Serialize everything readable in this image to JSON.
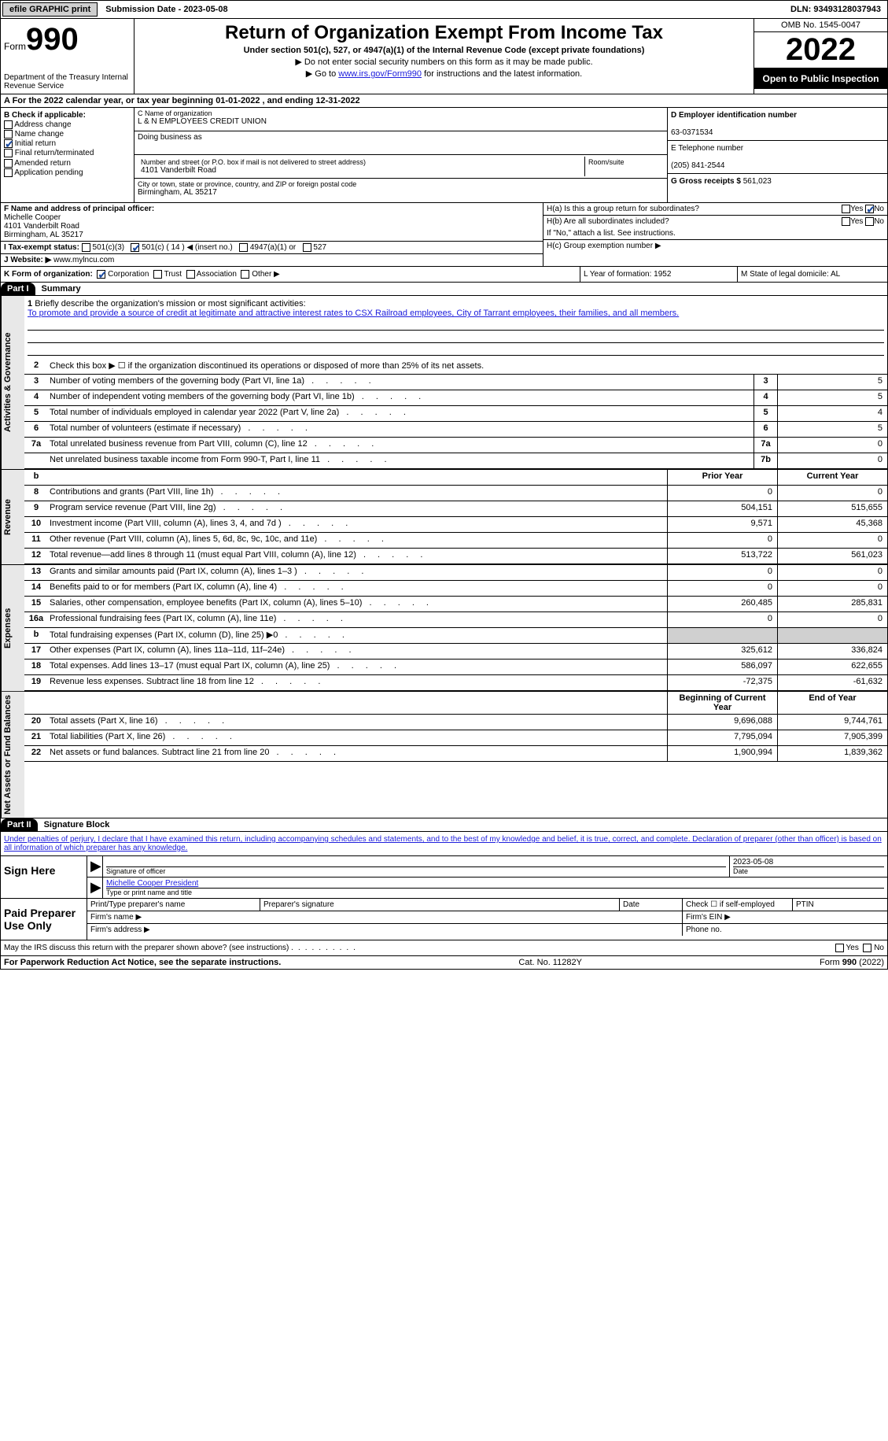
{
  "topbar": {
    "efile_btn": "efile GRAPHIC print",
    "sub_date": "Submission Date - 2023-05-08",
    "dln": "DLN: 93493128037943"
  },
  "header": {
    "form_word": "Form",
    "form_num": "990",
    "dept": "Department of the Treasury Internal Revenue Service",
    "title": "Return of Organization Exempt From Income Tax",
    "sub1": "Under section 501(c), 527, or 4947(a)(1) of the Internal Revenue Code (except private foundations)",
    "sub2": "▶ Do not enter social security numbers on this form as it may be made public.",
    "sub3_pre": "▶ Go to ",
    "sub3_link": "www.irs.gov/Form990",
    "sub3_post": " for instructions and the latest information.",
    "omb": "OMB No. 1545-0047",
    "year": "2022",
    "open": "Open to Public Inspection"
  },
  "rowA": "A For the 2022 calendar year, or tax year beginning 01-01-2022    , and ending 12-31-2022",
  "colB_label": "B Check if applicable:",
  "colB_opts": [
    "Address change",
    "Name change",
    "Initial return",
    "Final return/terminated",
    "Amended return",
    "Application pending"
  ],
  "colB_checked_idx": 2,
  "colC": {
    "name_label": "C Name of organization",
    "name": "L & N EMPLOYEES CREDIT UNION",
    "dba": "Doing business as",
    "addr_label": "Number and street (or P.O. box if mail is not delivered to street address)",
    "room_label": "Room/suite",
    "addr": "4101 Vanderbilt Road",
    "city_label": "City or town, state or province, country, and ZIP or foreign postal code",
    "city": "Birmingham, AL  35217"
  },
  "colD": {
    "ein_label": "D Employer identification number",
    "ein": "63-0371534",
    "tel_label": "E Telephone number",
    "tel": "(205) 841-2544",
    "gross_label": "G Gross receipts $",
    "gross": "561,023"
  },
  "rowF": {
    "label": "F Name and address of principal officer:",
    "name": "Michelle Cooper",
    "addr1": "4101 Vanderbilt Road",
    "addr2": "Birmingham, AL  35217"
  },
  "rowH": {
    "ha": "H(a)  Is this a group return for subordinates?",
    "hb": "H(b)  Are all subordinates included?",
    "hb_note": "If \"No,\" attach a list. See instructions.",
    "hc": "H(c)  Group exemption number ▶",
    "yes": "Yes",
    "no": "No"
  },
  "rowI": {
    "label": "I  Tax-exempt status:",
    "o1": "501(c)(3)",
    "o2": "501(c) ( 14 ) ◀ (insert no.)",
    "o3": "4947(a)(1) or",
    "o4": "527"
  },
  "rowJ": {
    "label": "J  Website: ▶",
    "val": "www.mylncu.com"
  },
  "rowK": {
    "label": "K Form of organization:",
    "o1": "Corporation",
    "o2": "Trust",
    "o3": "Association",
    "o4": "Other ▶",
    "L": "L Year of formation: 1952",
    "M": "M State of legal domicile: AL"
  },
  "part1": {
    "tag": "Part I",
    "title": "Summary"
  },
  "brief": {
    "num": "1",
    "label": "Briefly describe the organization's mission or most significant activities:",
    "text": "To promote and provide a source of credit at legitimate and attractive interest rates to CSX Railroad employees, City of Tarrant employees, their families, and all members."
  },
  "line2": "Check this box ▶ ☐  if the organization discontinued its operations or disposed of more than 25% of its net assets.",
  "gov_lines": [
    {
      "n": "3",
      "d": "Number of voting members of the governing body (Part VI, line 1a)",
      "b": "3",
      "v": "5"
    },
    {
      "n": "4",
      "d": "Number of independent voting members of the governing body (Part VI, line 1b)",
      "b": "4",
      "v": "5"
    },
    {
      "n": "5",
      "d": "Total number of individuals employed in calendar year 2022 (Part V, line 2a)",
      "b": "5",
      "v": "4"
    },
    {
      "n": "6",
      "d": "Total number of volunteers (estimate if necessary)",
      "b": "6",
      "v": "5"
    },
    {
      "n": "7a",
      "d": "Total unrelated business revenue from Part VIII, column (C), line 12",
      "b": "7a",
      "v": "0"
    },
    {
      "n": "",
      "d": "Net unrelated business taxable income from Form 990-T, Part I, line 11",
      "b": "7b",
      "v": "0"
    }
  ],
  "col_hdr": {
    "n": "b",
    "prior": "Prior Year",
    "curr": "Current Year"
  },
  "rev_lines": [
    {
      "n": "8",
      "d": "Contributions and grants (Part VIII, line 1h)",
      "p": "0",
      "c": "0"
    },
    {
      "n": "9",
      "d": "Program service revenue (Part VIII, line 2g)",
      "p": "504,151",
      "c": "515,655"
    },
    {
      "n": "10",
      "d": "Investment income (Part VIII, column (A), lines 3, 4, and 7d )",
      "p": "9,571",
      "c": "45,368"
    },
    {
      "n": "11",
      "d": "Other revenue (Part VIII, column (A), lines 5, 6d, 8c, 9c, 10c, and 11e)",
      "p": "0",
      "c": "0"
    },
    {
      "n": "12",
      "d": "Total revenue—add lines 8 through 11 (must equal Part VIII, column (A), line 12)",
      "p": "513,722",
      "c": "561,023"
    }
  ],
  "exp_lines": [
    {
      "n": "13",
      "d": "Grants and similar amounts paid (Part IX, column (A), lines 1–3 )",
      "p": "0",
      "c": "0"
    },
    {
      "n": "14",
      "d": "Benefits paid to or for members (Part IX, column (A), line 4)",
      "p": "0",
      "c": "0"
    },
    {
      "n": "15",
      "d": "Salaries, other compensation, employee benefits (Part IX, column (A), lines 5–10)",
      "p": "260,485",
      "c": "285,831"
    },
    {
      "n": "16a",
      "d": "Professional fundraising fees (Part IX, column (A), line 11e)",
      "p": "0",
      "c": "0"
    },
    {
      "n": "b",
      "d": "Total fundraising expenses (Part IX, column (D), line 25) ▶0",
      "p": "GRAY",
      "c": "GRAY"
    },
    {
      "n": "17",
      "d": "Other expenses (Part IX, column (A), lines 11a–11d, 11f–24e)",
      "p": "325,612",
      "c": "336,824"
    },
    {
      "n": "18",
      "d": "Total expenses. Add lines 13–17 (must equal Part IX, column (A), line 25)",
      "p": "586,097",
      "c": "622,655"
    },
    {
      "n": "19",
      "d": "Revenue less expenses. Subtract line 18 from line 12",
      "p": "-72,375",
      "c": "-61,632"
    }
  ],
  "net_hdr": {
    "p": "Beginning of Current Year",
    "c": "End of Year"
  },
  "net_lines": [
    {
      "n": "20",
      "d": "Total assets (Part X, line 16)",
      "p": "9,696,088",
      "c": "9,744,761"
    },
    {
      "n": "21",
      "d": "Total liabilities (Part X, line 26)",
      "p": "7,795,094",
      "c": "7,905,399"
    },
    {
      "n": "22",
      "d": "Net assets or fund balances. Subtract line 21 from line 20",
      "p": "1,900,994",
      "c": "1,839,362"
    }
  ],
  "section_labels": {
    "gov": "Activities & Governance",
    "rev": "Revenue",
    "exp": "Expenses",
    "net": "Net Assets or Fund Balances"
  },
  "part2": {
    "tag": "Part II",
    "title": "Signature Block"
  },
  "penalty": "Under penalties of perjury, I declare that I have examined this return, including accompanying schedules and statements, and to the best of my knowledge and belief, it is true, correct, and complete. Declaration of preparer (other than officer) is based on all information of which preparer has any knowledge.",
  "sign": {
    "here": "Sign Here",
    "sig_label": "Signature of officer",
    "date": "2023-05-08",
    "date_label": "Date",
    "name": "Michelle Cooper  President",
    "name_label": "Type or print name and title"
  },
  "paid": {
    "label": "Paid Preparer Use Only",
    "c1": "Print/Type preparer's name",
    "c2": "Preparer's signature",
    "c3": "Date",
    "c4": "Check ☐ if self-employed",
    "c5": "PTIN",
    "firm_name": "Firm's name    ▶",
    "firm_ein": "Firm's EIN ▶",
    "firm_addr": "Firm's address ▶",
    "phone": "Phone no."
  },
  "discuss": "May the IRS discuss this return with the preparer shown above? (see instructions)",
  "footer": {
    "l": "For Paperwork Reduction Act Notice, see the separate instructions.",
    "m": "Cat. No. 11282Y",
    "r": "Form 990 (2022)"
  }
}
